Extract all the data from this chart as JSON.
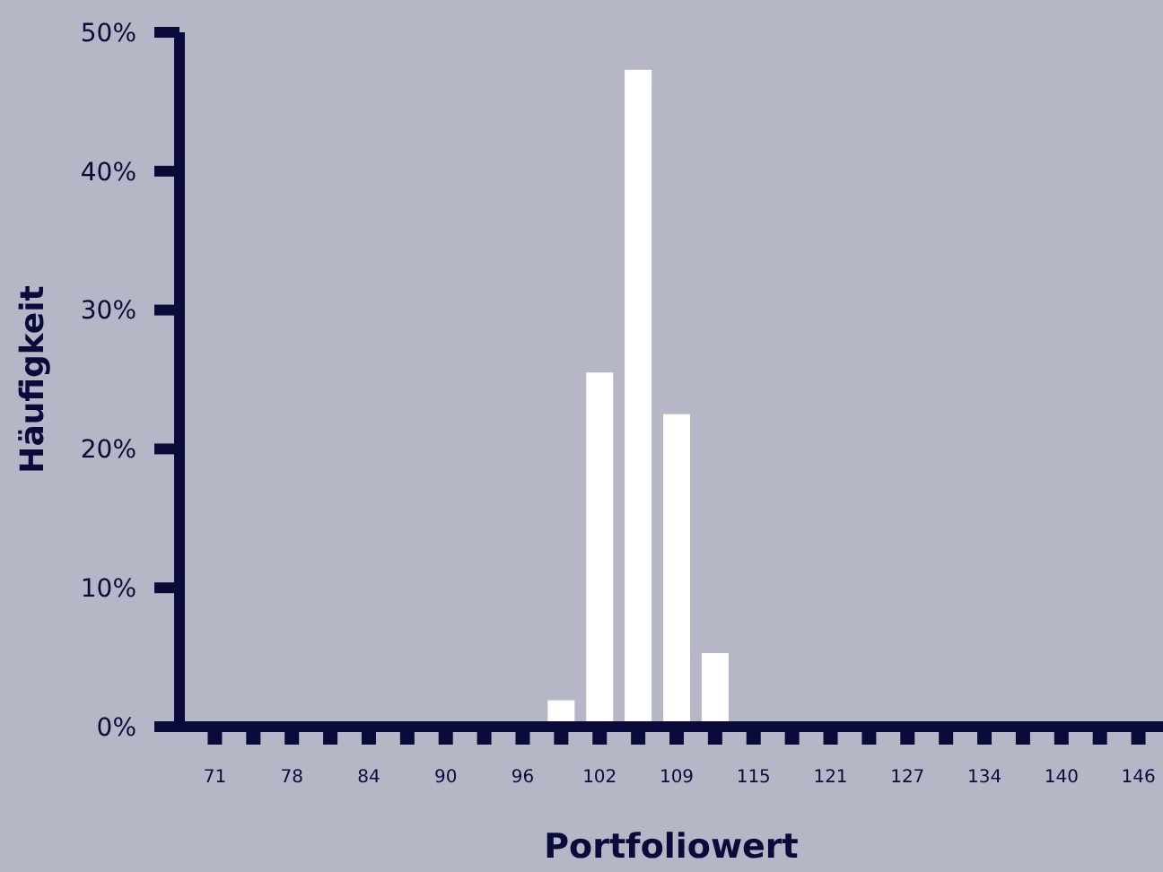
{
  "chart_data": {
    "type": "bar",
    "xlabel": "Portfoliowert",
    "ylabel": "Häufigkeit",
    "categories": [
      "71",
      null,
      "78",
      null,
      "84",
      null,
      "90",
      null,
      "96",
      null,
      "102",
      null,
      "109",
      null,
      "115",
      null,
      "121",
      null,
      "127",
      null,
      "134",
      null,
      "140",
      null,
      "146"
    ],
    "values": [
      0,
      0,
      0,
      0,
      0,
      0,
      0,
      0,
      0,
      1.9,
      25.5,
      47.3,
      22.5,
      5.3,
      0,
      0,
      0,
      0,
      0,
      0,
      0,
      0,
      0,
      0,
      0
    ],
    "color": "#ffffff",
    "ylim": [
      0,
      50
    ],
    "yticks": [
      {
        "value": 0,
        "label": "0%"
      },
      {
        "value": 10,
        "label": "10%"
      },
      {
        "value": 20,
        "label": "20%"
      },
      {
        "value": 30,
        "label": "30%"
      },
      {
        "value": 40,
        "label": "40%"
      },
      {
        "value": 50,
        "label": "50%"
      }
    ],
    "grid": false
  }
}
